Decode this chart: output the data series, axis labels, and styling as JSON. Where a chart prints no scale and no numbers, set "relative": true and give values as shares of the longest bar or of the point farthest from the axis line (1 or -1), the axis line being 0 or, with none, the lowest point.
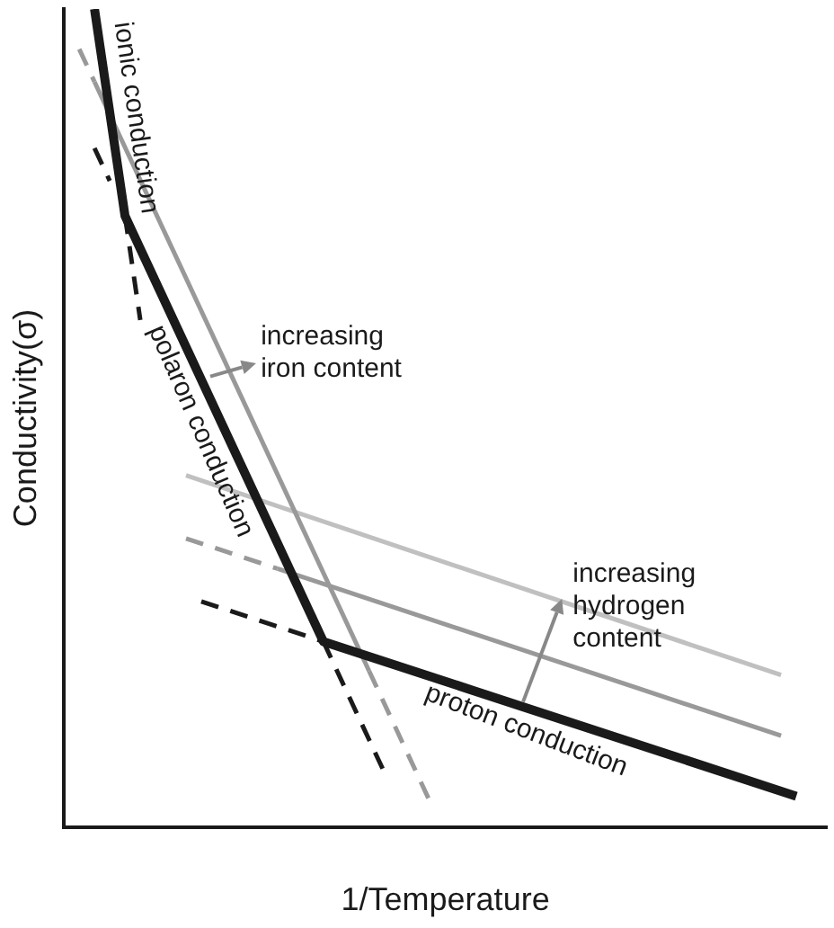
{
  "chart_data": {
    "type": "line",
    "relative": true,
    "xlabel": "1/Temperature",
    "ylabel": "Conductivity(σ)",
    "grid": false,
    "legend": false,
    "marker": "none",
    "categories": [
      null,
      null,
      null,
      null,
      null,
      null,
      null,
      null,
      null,
      null,
      null,
      null,
      null,
      null,
      null,
      null,
      null,
      null,
      null,
      null,
      null,
      null,
      null,
      null,
      null,
      null,
      null,
      null,
      null,
      null,
      null,
      null,
      null,
      null,
      null,
      null,
      null,
      null,
      null,
      null,
      null,
      null,
      null,
      null,
      null,
      null,
      null,
      null,
      null,
      null,
      null
    ],
    "series": [
      {
        "color": "#1a1a1a",
        "line_style": "solid",
        "values": [
          null,
          null,
          1,
          null,
          0.747,
          null,
          null,
          null,
          null,
          null,
          null,
          null,
          null,
          null,
          null,
          null,
          null,
          0.227,
          null,
          null,
          null,
          null,
          null,
          null,
          null,
          null,
          null,
          null,
          null,
          null,
          null,
          null,
          null,
          null,
          null,
          null,
          null,
          null,
          null,
          null,
          null,
          null,
          null,
          null,
          null,
          null,
          null,
          null,
          0.038,
          null,
          null
        ]
      },
      {
        "color": "#1a1a1a",
        "line_style": "dashed",
        "values": [
          null,
          null,
          0.83,
          0.79,
          null,
          null,
          null,
          null,
          null,
          null,
          null,
          null,
          null,
          null,
          null,
          null,
          null,
          null,
          null,
          null,
          null,
          null,
          null,
          null,
          null,
          null,
          null,
          null,
          null,
          null,
          null,
          null,
          null,
          null,
          null,
          null,
          null,
          null,
          null,
          null,
          null,
          null,
          null,
          null,
          null,
          null,
          null,
          null,
          null,
          null,
          null
        ]
      },
      {
        "color": "#1a1a1a",
        "line_style": "dashed",
        "values": [
          null,
          null,
          null,
          null,
          0.747,
          0.62,
          null,
          null,
          null,
          null,
          null,
          null,
          null,
          null,
          null,
          null,
          null,
          null,
          null,
          null,
          null,
          null,
          null,
          null,
          null,
          null,
          null,
          null,
          null,
          null,
          null,
          null,
          null,
          null,
          null,
          null,
          null,
          null,
          null,
          null,
          null,
          null,
          null,
          null,
          null,
          null,
          null,
          null,
          null,
          null,
          null
        ]
      },
      {
        "color": "#1a1a1a",
        "line_style": "dashed",
        "values": [
          null,
          null,
          null,
          null,
          null,
          null,
          null,
          null,
          null,
          null,
          null,
          null,
          null,
          null,
          null,
          null,
          null,
          0.227,
          null,
          null,
          null,
          0.067,
          null,
          null,
          null,
          null,
          null,
          null,
          null,
          null,
          null,
          null,
          null,
          null,
          null,
          null,
          null,
          null,
          null,
          null,
          null,
          null,
          null,
          null,
          null,
          null,
          null,
          null,
          null,
          null,
          null
        ]
      },
      {
        "color": "#1a1a1a",
        "line_style": "dashed",
        "values": [
          null,
          null,
          null,
          null,
          null,
          null,
          null,
          null,
          null,
          0.276,
          null,
          null,
          null,
          null,
          null,
          null,
          null,
          0.227,
          null,
          null,
          null,
          null,
          null,
          null,
          null,
          null,
          null,
          null,
          null,
          null,
          null,
          null,
          null,
          null,
          null,
          null,
          null,
          null,
          null,
          null,
          null,
          null,
          null,
          null,
          null,
          null,
          null,
          null,
          null,
          null,
          null
        ]
      },
      {
        "color": "#999999",
        "line_style": "dashed",
        "values": [
          null,
          0.951,
          0.911,
          null,
          null,
          null,
          null,
          null,
          null,
          null,
          null,
          null,
          null,
          null,
          null,
          null,
          null,
          null,
          null,
          null,
          null,
          null,
          null,
          null,
          null,
          null,
          null,
          null,
          null,
          null,
          null,
          null,
          null,
          null,
          null,
          null,
          null,
          null,
          null,
          null,
          null,
          null,
          null,
          null,
          null,
          null,
          null,
          null,
          null,
          null,
          null
        ]
      },
      {
        "color": "#999999",
        "line_style": "solid",
        "values": [
          null,
          null,
          0.911,
          null,
          null,
          null,
          null,
          null,
          null,
          null,
          null,
          null,
          null,
          null,
          null,
          null,
          null,
          null,
          null,
          null,
          0.191,
          null,
          null,
          null,
          null,
          null,
          null,
          null,
          null,
          null,
          null,
          null,
          null,
          null,
          null,
          null,
          null,
          null,
          null,
          null,
          null,
          null,
          null,
          null,
          null,
          null,
          null,
          null,
          null,
          null,
          null
        ]
      },
      {
        "color": "#999999",
        "line_style": "dashed",
        "values": [
          null,
          null,
          null,
          null,
          null,
          null,
          null,
          null,
          null,
          null,
          null,
          null,
          null,
          null,
          null,
          null,
          null,
          null,
          null,
          null,
          0.191,
          null,
          null,
          null,
          0.031,
          null,
          null,
          null,
          null,
          null,
          null,
          null,
          null,
          null,
          null,
          null,
          null,
          null,
          null,
          null,
          null,
          null,
          null,
          null,
          null,
          null,
          null,
          null,
          null,
          null,
          null
        ]
      },
      {
        "color": "#999999",
        "line_style": "dashed",
        "values": [
          null,
          null,
          null,
          null,
          null,
          null,
          null,
          null,
          0.353,
          null,
          null,
          null,
          null,
          null,
          0.316,
          null,
          null,
          null,
          null,
          null,
          null,
          null,
          null,
          null,
          null,
          null,
          null,
          null,
          null,
          null,
          null,
          null,
          null,
          null,
          null,
          null,
          null,
          null,
          null,
          null,
          null,
          null,
          null,
          null,
          null,
          null,
          null,
          null,
          null,
          null,
          null
        ]
      },
      {
        "color": "#999999",
        "line_style": "solid",
        "values": [
          null,
          null,
          null,
          null,
          null,
          null,
          null,
          null,
          null,
          null,
          null,
          null,
          null,
          null,
          0.316,
          null,
          null,
          null,
          null,
          null,
          null,
          null,
          null,
          null,
          null,
          null,
          null,
          null,
          null,
          null,
          null,
          null,
          null,
          null,
          null,
          null,
          null,
          null,
          null,
          null,
          null,
          null,
          null,
          null,
          null,
          null,
          null,
          0.112,
          null,
          null,
          null
        ]
      },
      {
        "color": "#c0c0c0",
        "line_style": "solid",
        "values": [
          null,
          null,
          null,
          null,
          null,
          null,
          null,
          null,
          0.43,
          null,
          null,
          null,
          null,
          null,
          null,
          null,
          null,
          null,
          null,
          null,
          null,
          null,
          null,
          null,
          null,
          null,
          null,
          null,
          null,
          null,
          null,
          null,
          null,
          null,
          null,
          null,
          null,
          null,
          null,
          null,
          null,
          null,
          null,
          null,
          null,
          null,
          null,
          0.186,
          null,
          null,
          null
        ]
      }
    ],
    "annotations": [
      "ionic conduction",
      "polaron conduction",
      "proton conduction",
      "increasing\niron content",
      "increasing\nhydrogen\ncontent"
    ]
  }
}
